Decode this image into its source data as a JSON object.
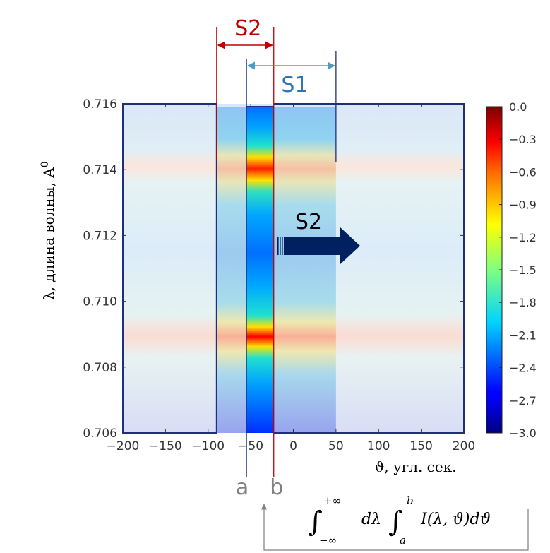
{
  "chart_data": {
    "type": "heatmap",
    "xlabel": "ϑ, угл. сек.",
    "ylabel": "λ, длина волны, A",
    "ylabel_superscript": "0",
    "xlim": [
      -200,
      200
    ],
    "ylim": [
      0.706,
      0.716
    ],
    "x_ticks": [
      -200,
      -150,
      -100,
      -50,
      0,
      50,
      100,
      150,
      200
    ],
    "y_ticks": [
      0.706,
      0.708,
      0.71,
      0.712,
      0.714,
      0.716
    ],
    "y_tick_labels": [
      "0.706",
      "0.708",
      "0.710",
      "0.712",
      "0.714",
      "0.716"
    ],
    "colorbar": {
      "min": -3.0,
      "max": 0.0,
      "ticks": [
        0.0,
        -0.3,
        -0.6,
        -0.9,
        -1.2,
        -1.5,
        -1.8,
        -2.1,
        -2.4,
        -2.7,
        -3.0
      ],
      "tick_labels": [
        "0.0",
        "−0.3",
        "−0.6",
        "−0.9",
        "−1.2",
        "−1.5",
        "−1.8",
        "−2.1",
        "−2.4",
        "−2.7",
        "−3.0"
      ],
      "colormap": "jet"
    },
    "peaks_lambda": [
      0.7093,
      0.714
    ],
    "slit_regions": [
      {
        "from": -90,
        "to": 50,
        "label": "S1",
        "opacity": "medium"
      },
      {
        "from": -55,
        "to": -23,
        "label": "S2",
        "opacity": "full"
      }
    ],
    "annotations": {
      "s2_top": "S2",
      "s1": "S1",
      "s2_arrow": "S2",
      "a": "a",
      "b": "b",
      "a_x": -55,
      "b_x": -23
    },
    "formula": {
      "int1_upper": "+∞",
      "int1_lower": "−∞",
      "d_lambda": "dλ",
      "int2_upper": "b",
      "int2_lower": "a",
      "integrand": "I(λ, ϑ)dϑ"
    },
    "colors": {
      "s2": "#c00000",
      "s1": "#2e75b6",
      "arrow": "#002060",
      "frame": "#1f2f80",
      "grey": "#808080"
    }
  }
}
